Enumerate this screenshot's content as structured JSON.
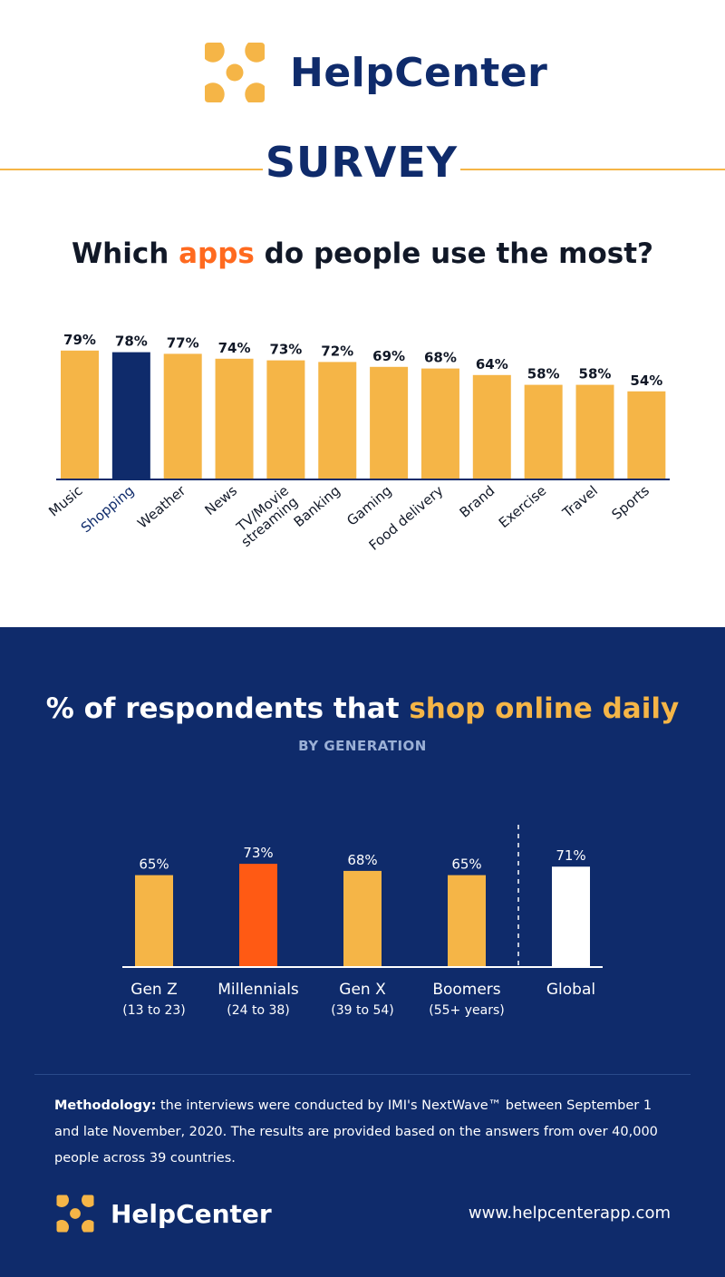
{
  "brand": {
    "name": "HelpCenter",
    "logo_icon": "helpcenter-logo-icon",
    "accent": "#f5b547",
    "navy": "#0f2b6b",
    "orange": "#ff6a1f"
  },
  "header": {
    "survey_title": "SURVEY"
  },
  "chart1": {
    "title_pre": "Which ",
    "title_hl": "apps",
    "title_post": " do people use the most?"
  },
  "chart2": {
    "title_pre": "% of respondents that ",
    "title_hl": "shop online daily",
    "subtitle": "BY GENERATION"
  },
  "chart_data": [
    {
      "type": "bar",
      "title": "Which apps do people use the most?",
      "categories": [
        "Music",
        "Shopping",
        "Weather",
        "News",
        "TV/Movie streaming",
        "Banking",
        "Gaming",
        "Food delivery",
        "Brand",
        "Exercise",
        "Travel",
        "Sports"
      ],
      "values": [
        79,
        78,
        77,
        74,
        73,
        72,
        69,
        68,
        64,
        58,
        58,
        54
      ],
      "labels": [
        "79%",
        "78%",
        "77%",
        "74%",
        "73%",
        "72%",
        "69%",
        "68%",
        "64%",
        "58%",
        "58%",
        "54%"
      ],
      "highlight_index": 1,
      "bar_color": "#f5b547",
      "highlight_color": "#0f2b6b",
      "ylim": [
        0,
        100
      ],
      "grid": false
    },
    {
      "type": "bar",
      "title": "% of respondents that shop online daily",
      "subtitle": "BY GENERATION",
      "categories": [
        "Gen Z",
        "Millennials",
        "Gen X",
        "Boomers",
        "Global"
      ],
      "sublabels": [
        "(13 to 23)",
        "(24 to 38)",
        "(39 to 54)",
        "(55+ years)",
        ""
      ],
      "values": [
        65,
        73,
        68,
        65,
        71
      ],
      "labels": [
        "65%",
        "73%",
        "68%",
        "65%",
        "71%"
      ],
      "colors": [
        "#f5b547",
        "#ff5a14",
        "#f5b547",
        "#f5b547",
        "#ffffff"
      ],
      "ylim": [
        0,
        100
      ],
      "grid": false
    }
  ],
  "methodology": {
    "label": "Methodology:",
    "text": " the interviews were conducted by IMI's NextWave™ between September 1 and late November, 2020. The results are provided based on the answers from over 40,000 people across 39 countries."
  },
  "footer": {
    "name": "HelpCenter",
    "url": "www.helpcenterapp.com"
  }
}
